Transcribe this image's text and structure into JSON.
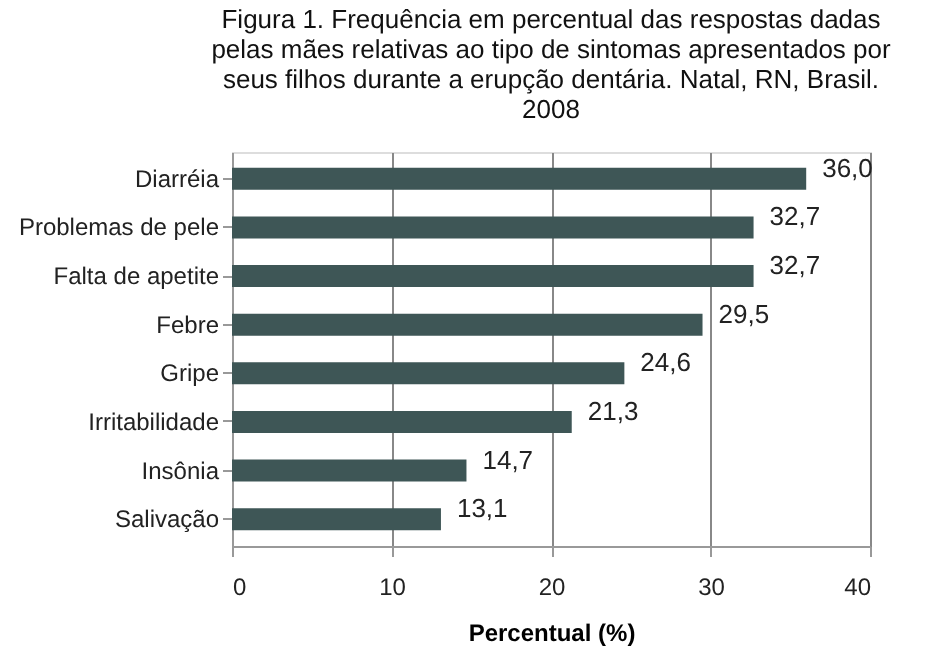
{
  "chart_data": {
    "type": "bar",
    "orientation": "horizontal",
    "title": "Figura 1. Frequência em percentual das respostas dadas pelas mães relativas ao tipo de sintomas apresentados por seus filhos durante a erupção dentária. Natal, RN, Brasil. 2008",
    "categories": [
      "Diarréia",
      "Problemas de pele",
      "Falta de apetite",
      "Febre",
      "Gripe",
      "Irritabilidade",
      "Insônia",
      "Salivação"
    ],
    "values": [
      36.0,
      32.7,
      32.7,
      29.5,
      24.6,
      21.3,
      14.7,
      13.1
    ],
    "value_labels": [
      "36,0",
      "32,7",
      "32,7",
      "29,5",
      "24,6",
      "21,3",
      "14,7",
      "13,1"
    ],
    "color": "#3e5656",
    "xlabel": "Percentual  (%)",
    "xlim": [
      0,
      40
    ],
    "xticks": [
      0,
      10,
      20,
      30,
      40
    ],
    "grid": "x"
  }
}
